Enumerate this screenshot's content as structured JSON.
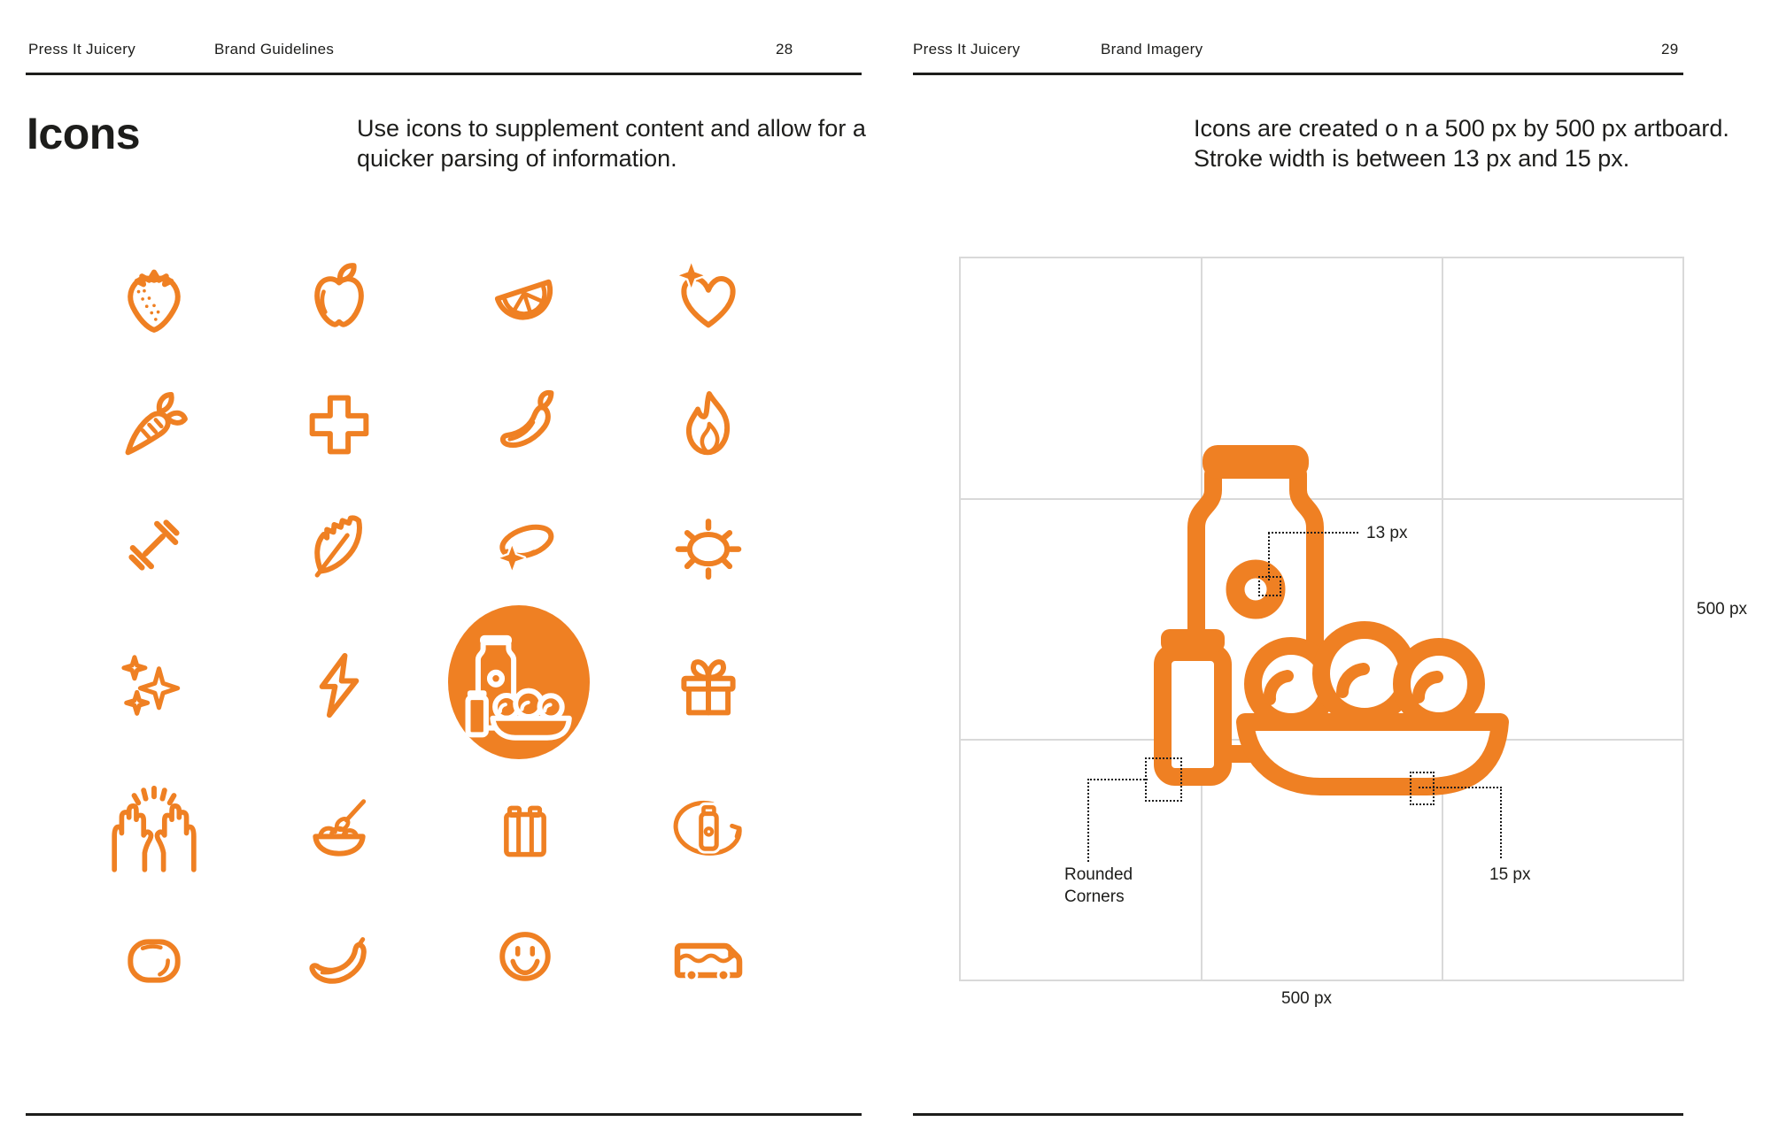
{
  "colors": {
    "accent": "#EF8023",
    "grid_line": "#D9D9D9",
    "ink": "#1D1D1B"
  },
  "left_page": {
    "header": {
      "brand": "Press It Juicery",
      "section": "Brand Guidelines",
      "page_number": "28"
    },
    "title": "Icons",
    "description_line1": "Use icons to supplement content and allow for a",
    "description_line2": "quicker parsing of information.",
    "icon_names": [
      "strawberry",
      "apple",
      "orange-slice",
      "heart-sparkle",
      "carrot",
      "medical-cross",
      "chili-pepper",
      "flame",
      "dumbbell",
      "leaf",
      "swoosh-sparkle",
      "sun",
      "sparkles",
      "lightning-bolt",
      "juice-circle-badge",
      "gift",
      "celebrating-hands",
      "fruit-bowl-spoon",
      "juice-pack",
      "bottle-recycle",
      "lime",
      "banana",
      "smiley-face",
      "delivery-bus"
    ]
  },
  "right_page": {
    "header": {
      "brand": "Press It Juicery",
      "section": "Brand Imagery",
      "page_number": "29"
    },
    "description_line1": "Icons are created o n a 500 px by 500 px artboard.",
    "description_line2": "Stroke width is between 13 px and 15 px.",
    "artboard": {
      "grid_size": "3x3",
      "annotation_stroke_min": "13 px",
      "annotation_stroke_max": "15 px",
      "annotation_width": "500 px",
      "annotation_height": "500 px",
      "annotation_corners": "Rounded Corners"
    }
  }
}
